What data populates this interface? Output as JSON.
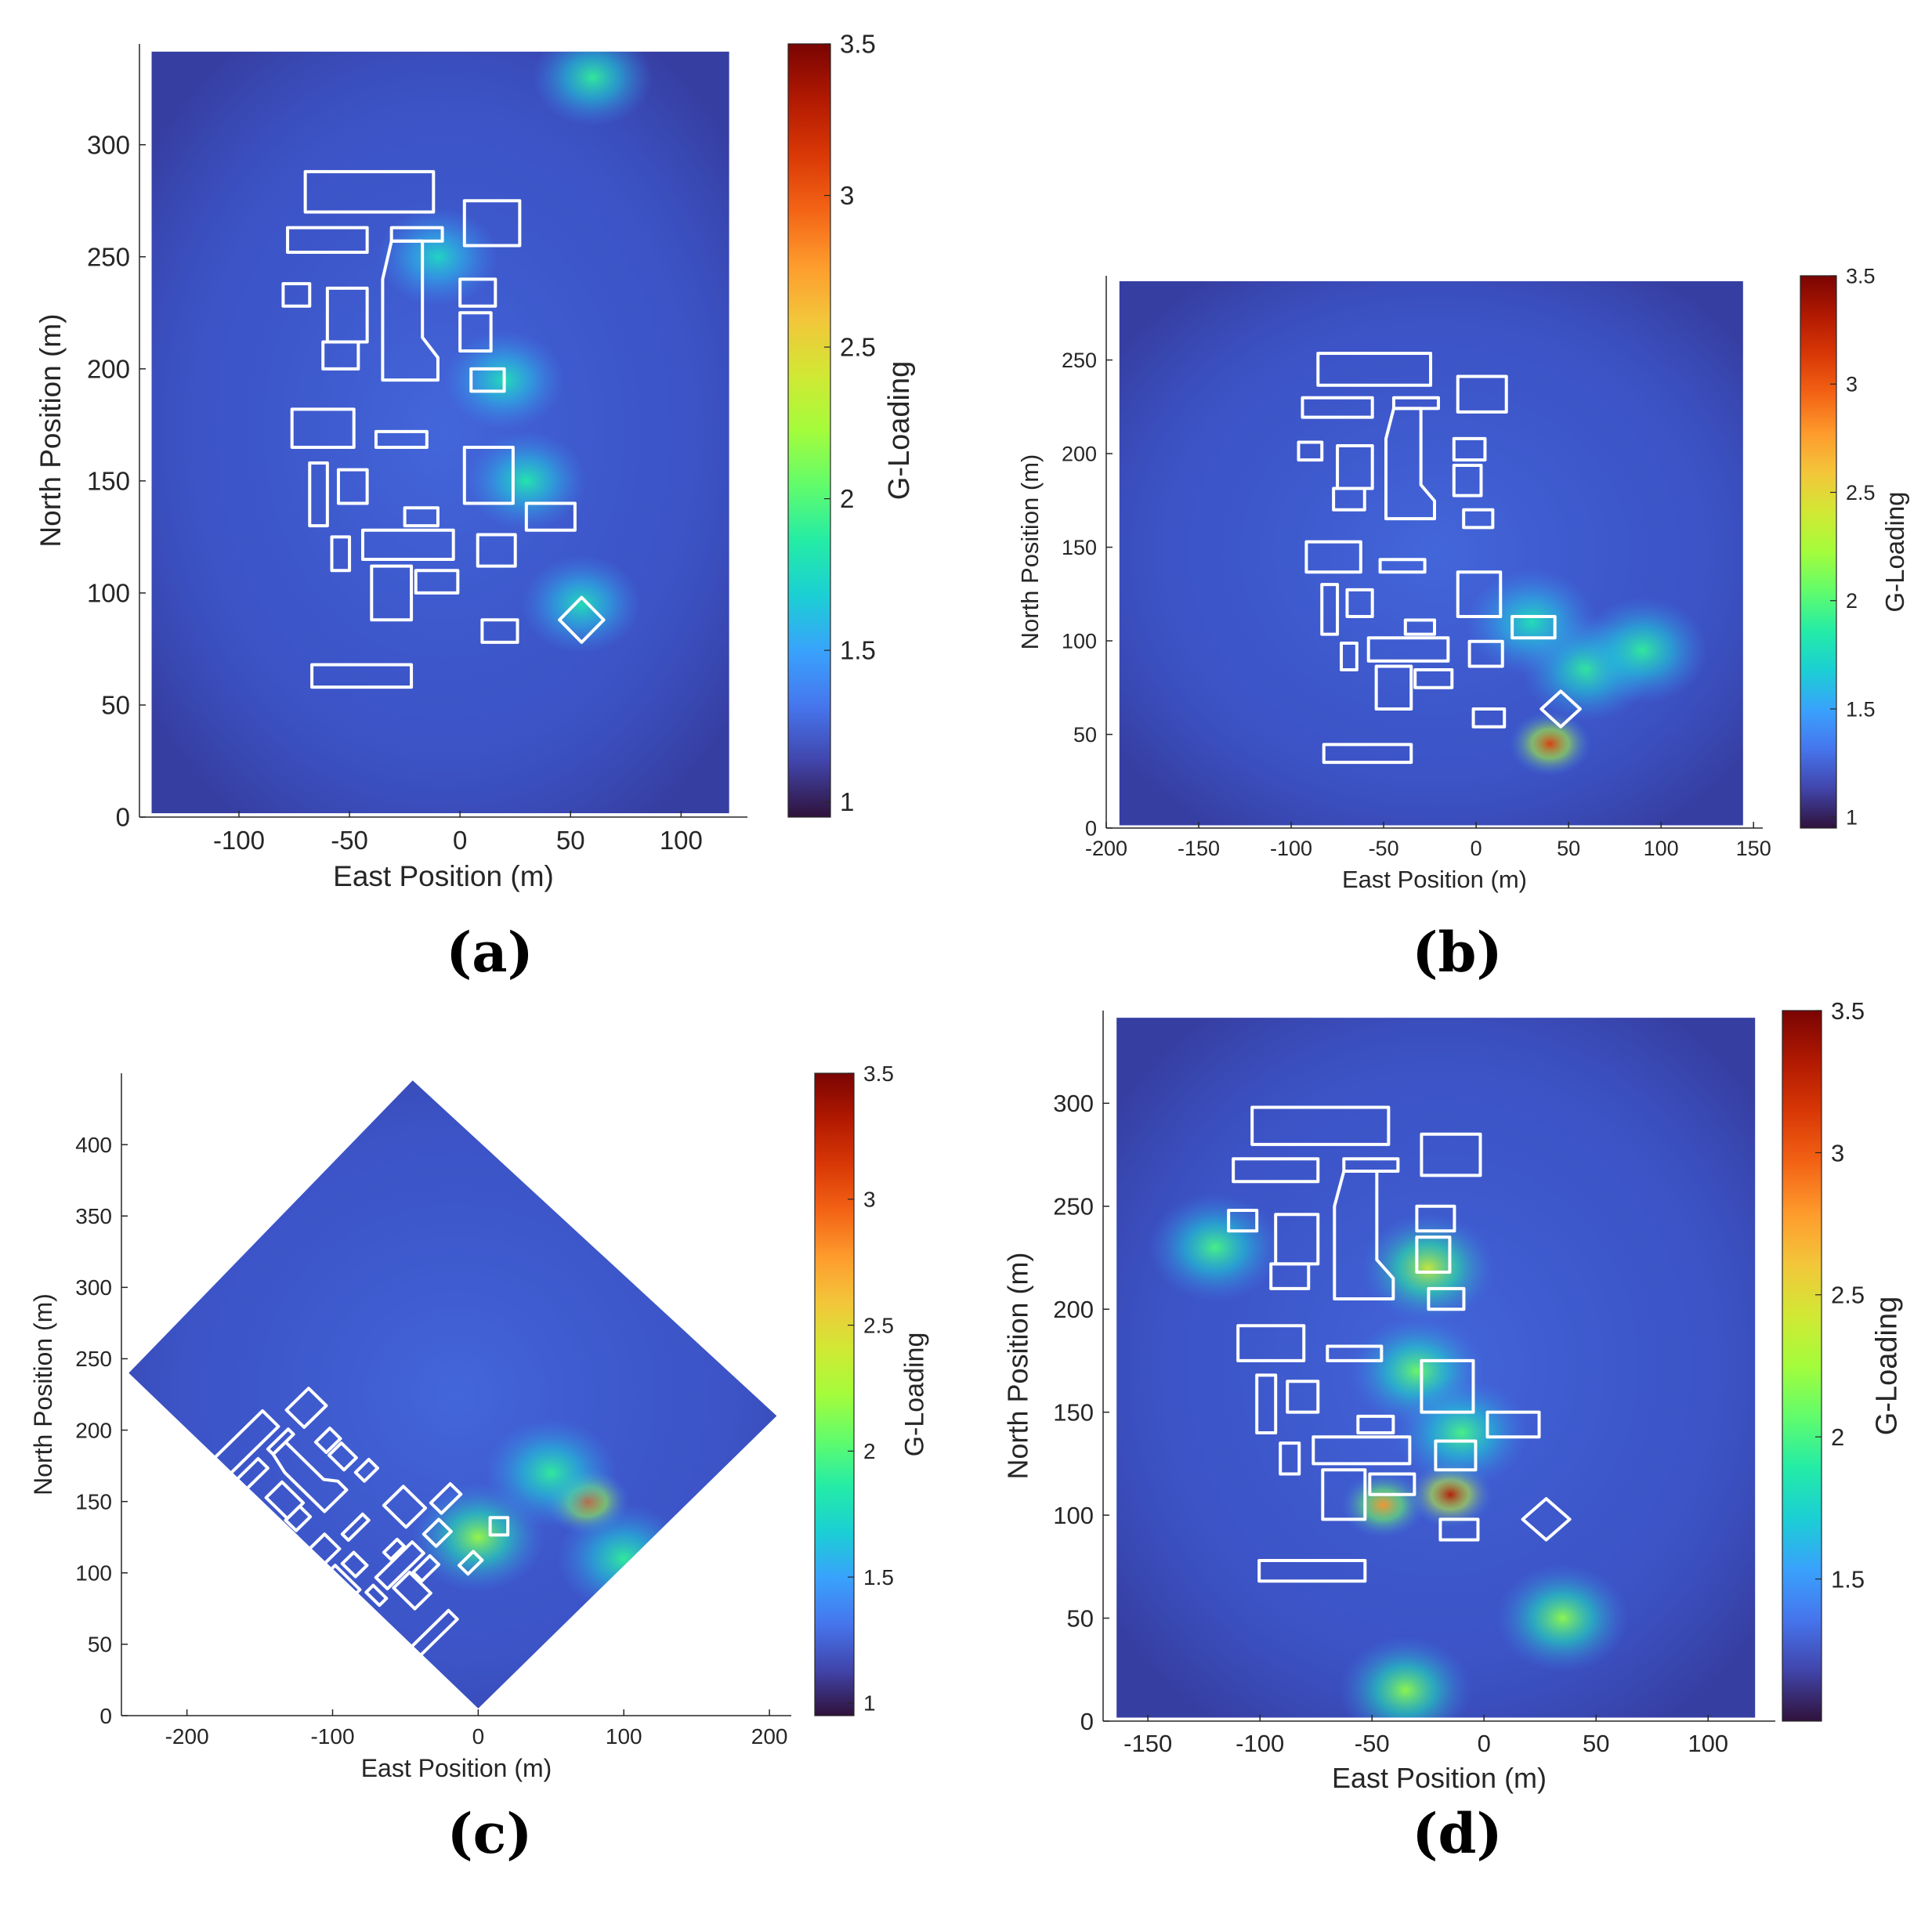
{
  "figure": {
    "colormap_stops": [
      "#30123b",
      "#4145ab",
      "#4675ed",
      "#39a2fc",
      "#1bcfd4",
      "#24eca6",
      "#61fc6c",
      "#a4fc3b",
      "#d1e834",
      "#f3c63a",
      "#fe9b2d",
      "#f36315",
      "#d93806",
      "#b11901",
      "#7a0402"
    ],
    "background_color": "#3a4fc0",
    "building_color": "#ffffff"
  },
  "chart_data": [
    {
      "panel": "(a)",
      "type": "heatmap",
      "title": "",
      "xlabel": "East Position (m)",
      "ylabel": "North Position (m)",
      "colorbar_label": "G-Loading",
      "xlim": [
        -145,
        130
      ],
      "ylim": [
        0,
        345
      ],
      "xticks": [
        -100,
        -50,
        0,
        50,
        100
      ],
      "yticks": [
        0,
        50,
        100,
        150,
        200,
        250,
        300
      ],
      "xtick_labels": [
        "-100",
        "-50",
        "0",
        "50",
        "100"
      ],
      "ytick_labels": [
        "0",
        "50",
        "100",
        "150",
        "200",
        "250",
        "300"
      ],
      "clim": [
        0.95,
        3.5
      ],
      "cticks": [
        1,
        1.5,
        2,
        2.5,
        3,
        3.5
      ],
      "ctick_labels": [
        "1",
        "1.5",
        "2",
        "2.5",
        "3",
        "3.5"
      ],
      "domain_shape": "rectangle",
      "hotspots": [
        {
          "x": 30,
          "y": 150,
          "value": 1.85
        },
        {
          "x": 55,
          "y": 95,
          "value": 1.8
        },
        {
          "x": -10,
          "y": 250,
          "value": 1.75
        },
        {
          "x": 20,
          "y": 195,
          "value": 1.8
        },
        {
          "x": 60,
          "y": 330,
          "value": 1.9
        }
      ]
    },
    {
      "panel": "(b)",
      "type": "heatmap",
      "title": "",
      "xlabel": "East Position (m)",
      "ylabel": "North Position (m)",
      "colorbar_label": "G-Loading",
      "xlim": [
        -200,
        155
      ],
      "ylim": [
        0,
        295
      ],
      "xticks": [
        -200,
        -150,
        -100,
        -50,
        0,
        50,
        100,
        150
      ],
      "yticks": [
        0,
        50,
        100,
        150,
        200,
        250
      ],
      "xtick_labels": [
        "-200",
        "-150",
        "-100",
        "-50",
        "0",
        "50",
        "100",
        "150"
      ],
      "ytick_labels": [
        "0",
        "50",
        "100",
        "150",
        "200",
        "250"
      ],
      "clim": [
        0.95,
        3.5
      ],
      "cticks": [
        1,
        1.5,
        2,
        2.5,
        3,
        3.5
      ],
      "ctick_labels": [
        "1",
        "1.5",
        "2",
        "2.5",
        "3",
        "3.5"
      ],
      "domain_shape": "rectangle",
      "hotspots": [
        {
          "x": 40,
          "y": 45,
          "value": 3.1
        },
        {
          "x": 60,
          "y": 85,
          "value": 1.9
        },
        {
          "x": 30,
          "y": 110,
          "value": 1.8
        },
        {
          "x": 90,
          "y": 95,
          "value": 1.9
        }
      ]
    },
    {
      "panel": "(c)",
      "type": "heatmap",
      "title": "",
      "xlabel": "East Position (m)",
      "ylabel": "North Position (m)",
      "colorbar_label": "G-Loading",
      "xlim": [
        -245,
        215
      ],
      "ylim": [
        0,
        450
      ],
      "xticks": [
        -200,
        -100,
        0,
        100,
        200
      ],
      "yticks": [
        0,
        50,
        100,
        150,
        200,
        250,
        300,
        350,
        400
      ],
      "xtick_labels": [
        "-200",
        "-100",
        "0",
        "100",
        "200"
      ],
      "ytick_labels": [
        "0",
        "50",
        "100",
        "150",
        "200",
        "250",
        "300",
        "350",
        "400"
      ],
      "clim": [
        0.95,
        3.5
      ],
      "cticks": [
        1,
        1.5,
        2,
        2.5,
        3,
        3.5
      ],
      "ctick_labels": [
        "1",
        "1.5",
        "2",
        "2.5",
        "3",
        "3.5"
      ],
      "domain_shape": "diamond",
      "hotspots": [
        {
          "x": 75,
          "y": 150,
          "value": 3.0
        },
        {
          "x": 0,
          "y": 125,
          "value": 2.2
        },
        {
          "x": 50,
          "y": 170,
          "value": 1.9
        },
        {
          "x": 100,
          "y": 110,
          "value": 1.9
        }
      ]
    },
    {
      "panel": "(d)",
      "type": "heatmap",
      "title": "",
      "xlabel": "East Position (m)",
      "ylabel": "North Position (m)",
      "colorbar_label": "G-Loading",
      "xlim": [
        -170,
        130
      ],
      "ylim": [
        0,
        345
      ],
      "xticks": [
        -150,
        -100,
        -50,
        0,
        50,
        100
      ],
      "yticks": [
        0,
        50,
        100,
        150,
        200,
        250,
        300
      ],
      "xtick_labels": [
        "-150",
        "-100",
        "-50",
        "0",
        "50",
        "100"
      ],
      "ytick_labels": [
        "0",
        "50",
        "100",
        "150",
        "200",
        "250",
        "300"
      ],
      "clim": [
        1.0,
        3.5
      ],
      "cticks": [
        1.5,
        2,
        2.5,
        3,
        3.5
      ],
      "ctick_labels": [
        "1.5",
        "2",
        "2.5",
        "3",
        "3.5"
      ],
      "domain_shape": "rectangle",
      "hotspots": [
        {
          "x": -15,
          "y": 110,
          "value": 3.3
        },
        {
          "x": -45,
          "y": 105,
          "value": 2.8
        },
        {
          "x": -30,
          "y": 170,
          "value": 2.1
        },
        {
          "x": -10,
          "y": 140,
          "value": 2.0
        },
        {
          "x": -120,
          "y": 230,
          "value": 2.0
        },
        {
          "x": 35,
          "y": 50,
          "value": 2.2
        },
        {
          "x": -35,
          "y": 15,
          "value": 2.2
        },
        {
          "x": -25,
          "y": 220,
          "value": 2.4
        }
      ]
    }
  ]
}
